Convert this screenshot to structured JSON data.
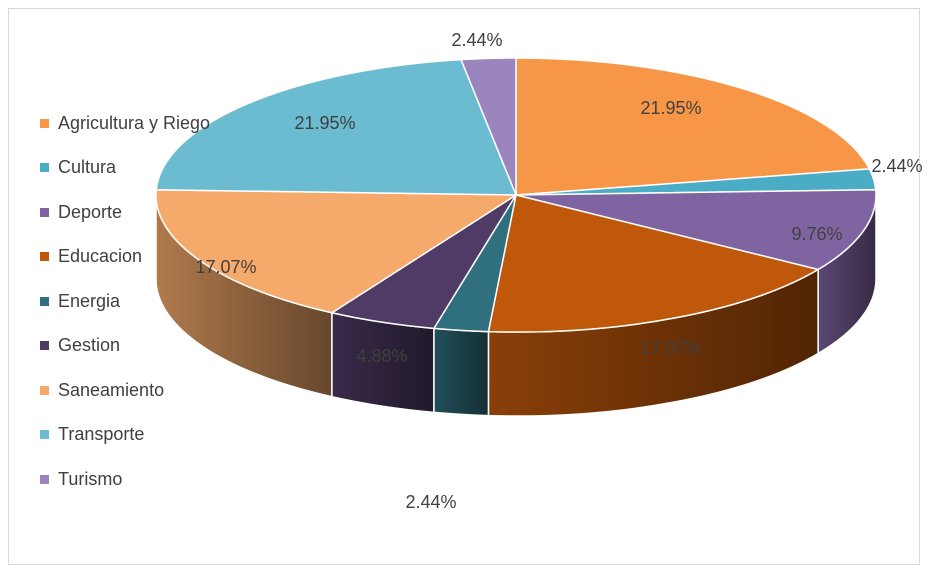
{
  "chart_data": {
    "type": "pie",
    "title": "",
    "categories": [
      "Agricultura y Riego",
      "Cultura",
      "Deporte",
      "Educacion",
      "Energia",
      "Gestion",
      "Saneamiento",
      "Transporte",
      "Turismo"
    ],
    "values": [
      21.95,
      2.44,
      9.76,
      17.07,
      2.44,
      4.88,
      17.07,
      21.95,
      2.44
    ],
    "data_labels": [
      "21.95%",
      "2.44%",
      "9.76%",
      "17.07%",
      "2.44%",
      "4.88%",
      "17.07%",
      "21.95%",
      "2.44%"
    ],
    "colors": [
      "#f79646",
      "#4bacc6",
      "#8064a2",
      "#c0580b",
      "#2f6f7e",
      "#4f3b66",
      "#f5a96a",
      "#6bbbd1",
      "#9b85bf"
    ],
    "legend_position": "left",
    "style": "3d"
  }
}
